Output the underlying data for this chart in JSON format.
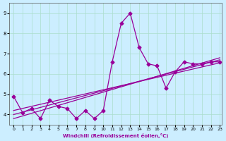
{
  "xlabel": "Windchill (Refroidissement éolien,°C)",
  "bg_color": "#cceeff",
  "line_color": "#990099",
  "xlim": [
    -0.5,
    23.2
  ],
  "ylim": [
    3.5,
    9.5
  ],
  "xticks": [
    0,
    1,
    2,
    3,
    4,
    5,
    6,
    7,
    8,
    9,
    10,
    11,
    12,
    13,
    14,
    15,
    16,
    17,
    18,
    19,
    20,
    21,
    22,
    23
  ],
  "yticks": [
    4,
    5,
    6,
    7,
    8,
    9
  ],
  "series1": {
    "x": [
      0,
      1,
      2,
      3,
      4,
      5,
      6,
      7,
      8,
      9,
      10,
      11,
      12,
      13,
      14,
      15,
      16,
      17,
      18,
      19,
      20,
      21,
      22,
      23
    ],
    "y": [
      4.9,
      4.1,
      4.3,
      3.8,
      4.7,
      4.4,
      4.3,
      3.8,
      4.2,
      3.8,
      4.2,
      6.6,
      8.5,
      9.0,
      7.3,
      6.5,
      6.4,
      5.3,
      6.1,
      6.6,
      6.5,
      6.5,
      6.6,
      6.6
    ]
  },
  "series2": {
    "x": [
      0,
      23
    ],
    "y": [
      4.2,
      6.55
    ]
  },
  "series3": {
    "x": [
      0,
      23
    ],
    "y": [
      4.0,
      6.7
    ]
  },
  "series4": {
    "x": [
      0,
      23
    ],
    "y": [
      3.8,
      6.8
    ]
  },
  "grid_color": "#aaddcc",
  "marker": "D",
  "markersize": 2.5,
  "linewidth": 0.9
}
